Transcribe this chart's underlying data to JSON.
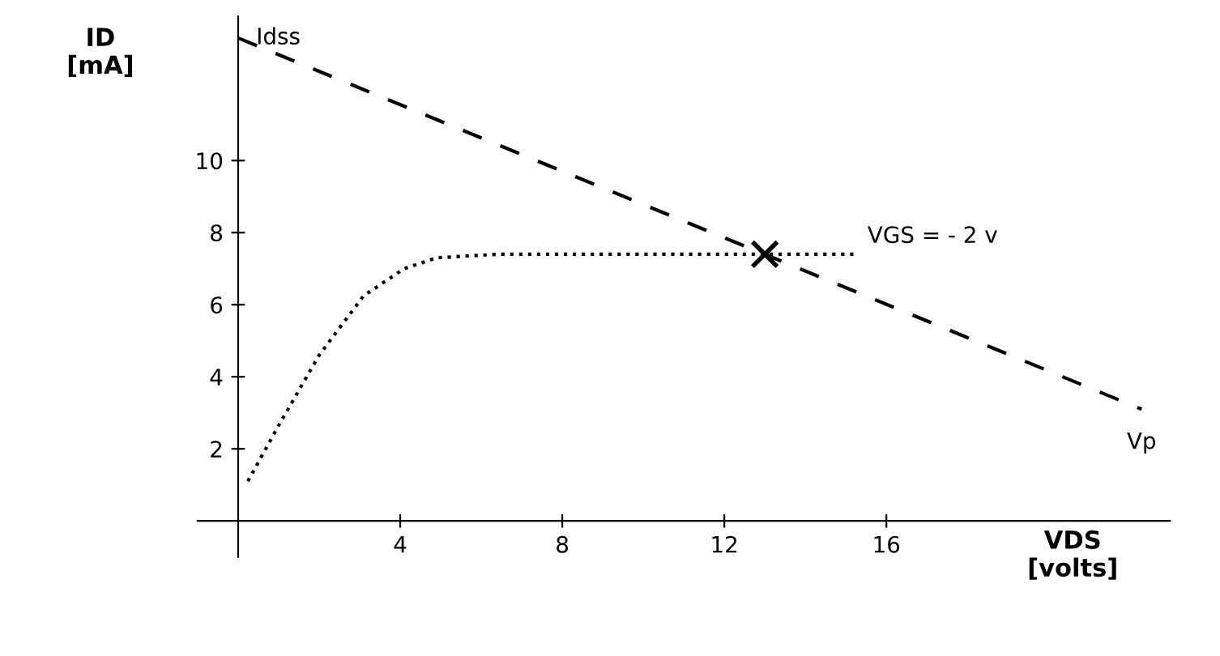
{
  "chart_data": {
    "type": "line",
    "xlabel": "VDS\n[volts]",
    "ylabel": "ID\n[mA]",
    "xlim": [
      -1,
      23
    ],
    "ylim": [
      -1,
      14
    ],
    "xticks": [
      4,
      8,
      12,
      16
    ],
    "yticks": [
      2,
      4,
      6,
      8,
      10
    ],
    "grid": false,
    "legend": false,
    "series": [
      {
        "color": "#000000",
        "line_style": "dotted",
        "marker": "none",
        "x": [
          0.24,
          1.0,
          2.0,
          3.1,
          4.1,
          4.9,
          6.4,
          13.0,
          15.2
        ],
        "values": [
          1.1,
          2.65,
          4.6,
          6.25,
          7.0,
          7.3,
          7.4,
          7.4,
          7.4
        ]
      },
      {
        "type": "line",
        "color": "#000000",
        "line_style": "dashed",
        "marker": "none",
        "x": [
          0,
          22.3
        ],
        "values": [
          13.4,
          3.1
        ]
      },
      {
        "type": "scatter",
        "color": "#000000",
        "marker": "cross",
        "x": [
          13.0
        ],
        "values": [
          7.4
        ]
      }
    ],
    "annotations": [
      {
        "text": "Idss",
        "x": 0,
        "y": 13.4
      },
      {
        "text": "VGS = - 2 v",
        "x": 15.2,
        "y": 7.4
      },
      {
        "text": "Vp",
        "x": 22.3,
        "y": 3.1
      }
    ]
  }
}
